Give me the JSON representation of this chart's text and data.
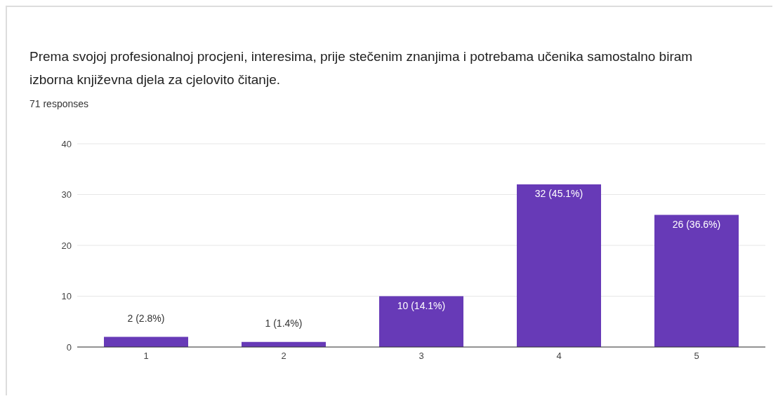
{
  "chart_data": {
    "type": "bar",
    "title": "Prema svojoj profesionalnoj procjeni, interesima, prije stečenim znanjima i potrebama učenika samostalno biram izborna književna djela za cjelovito čitanje.",
    "subtitle": "71 responses",
    "categories": [
      "1",
      "2",
      "3",
      "4",
      "5"
    ],
    "values": [
      2,
      1,
      10,
      32,
      26
    ],
    "color": "#673ab7",
    "value_labels": [
      "2 (2.8%)",
      "1 (1.4%)",
      "10 (14.1%)",
      "32 (45.1%)",
      "26 (36.6%)"
    ],
    "ylim": [
      0,
      40
    ],
    "yticks": [
      0,
      10,
      20,
      30,
      40
    ],
    "grid": "y"
  }
}
